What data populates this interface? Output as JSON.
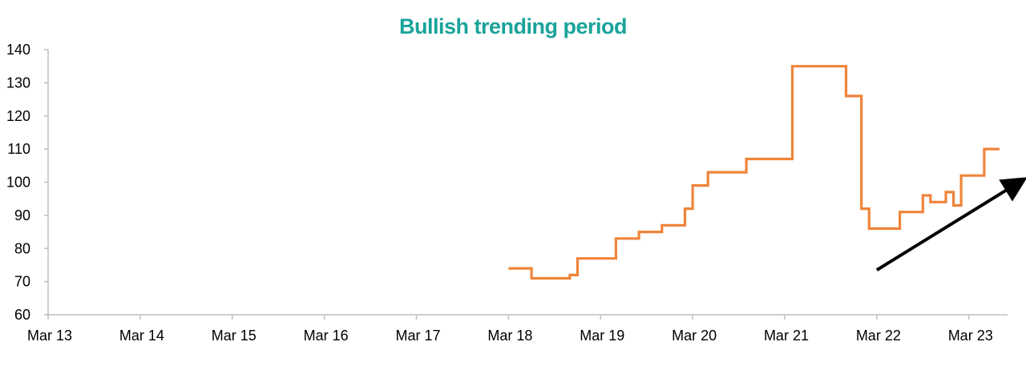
{
  "chart_data": {
    "type": "line",
    "title": "Bullish trending period",
    "xlabel": "",
    "ylabel": "",
    "ylim": [
      60,
      140
    ],
    "yticks": [
      "60",
      "70",
      "80",
      "90",
      "100",
      "110",
      "120",
      "130",
      "140"
    ],
    "xticks": [
      "Mar 13",
      "Mar 14",
      "Mar 15",
      "Mar 16",
      "Mar 17",
      "Mar 18",
      "Mar 19",
      "Mar 20",
      "Mar 21",
      "Mar 22",
      "Mar 23"
    ],
    "xlim": [
      "2013-03",
      "2023-07"
    ],
    "grid": false,
    "legend": "none",
    "series": [
      {
        "step": true,
        "color": "#F0843A",
        "points": [
          [
            "2018-03",
            74
          ],
          [
            "2018-06",
            71
          ],
          [
            "2018-11",
            72
          ],
          [
            "2018-12",
            77
          ],
          [
            "2019-05",
            83
          ],
          [
            "2019-08",
            85
          ],
          [
            "2019-11",
            87
          ],
          [
            "2020-02",
            92
          ],
          [
            "2020-03",
            99
          ],
          [
            "2020-05",
            103
          ],
          [
            "2020-10",
            107
          ],
          [
            "2021-04",
            135
          ],
          [
            "2021-11",
            126
          ],
          [
            "2022-01",
            92
          ],
          [
            "2022-02",
            86
          ],
          [
            "2022-06",
            91
          ],
          [
            "2022-09",
            96
          ],
          [
            "2022-10",
            94
          ],
          [
            "2022-12",
            97
          ],
          [
            "2023-01",
            93
          ],
          [
            "2023-02",
            102
          ],
          [
            "2023-05",
            110
          ],
          [
            "2023-07",
            110
          ]
        ]
      }
    ],
    "annotations": [
      {
        "type": "arrow",
        "color": "#000000",
        "from": [
          "2022-03",
          73.5
        ],
        "to": [
          "2023-07",
          101
        ]
      }
    ],
    "colors": {
      "title": "#1AA39A",
      "axis": "#BFBFBF",
      "line": "#F0843A",
      "arrow": "#000000"
    }
  }
}
